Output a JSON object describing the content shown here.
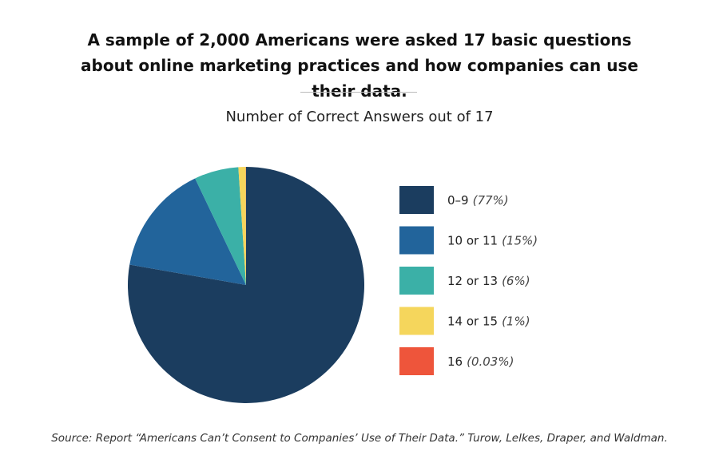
{
  "chart_data": {
    "type": "pie",
    "title": "A sample of 2,000 Americans were asked 17 basic questions about online marketing practices and how companies can use their data.",
    "subtitle": "Number of Correct Answers out of 17",
    "categories": [
      "0–9",
      "10 or 11",
      "12 or 13",
      "14 or 15",
      "16"
    ],
    "values": [
      77,
      15,
      6,
      1,
      0.03
    ],
    "value_labels": [
      "(77%)",
      "(15%)",
      "(6%)",
      "(1%)",
      "(0.03%)"
    ],
    "colors": [
      "#1b3d5f",
      "#22649b",
      "#3bb0a7",
      "#f5d65c",
      "#ee553b"
    ],
    "legend": "right",
    "source": "Source: Report “Americans Can’t Consent to Companies’ Use of Their Data.” Turow, Lelkes, Draper, and Waldman."
  }
}
